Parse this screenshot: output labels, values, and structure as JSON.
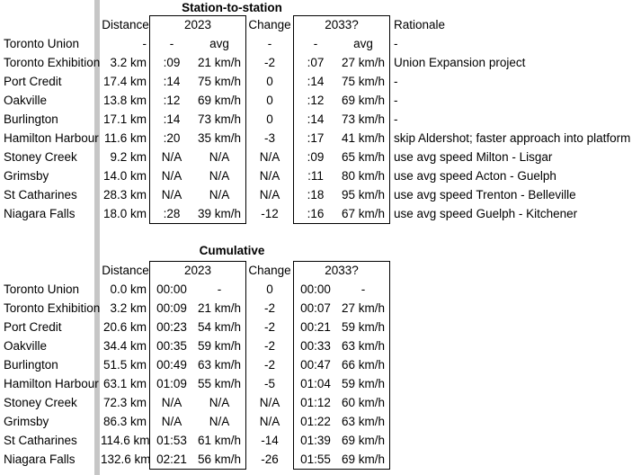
{
  "page": {
    "background_color": "#ffffff",
    "text_color": "#000000",
    "group_border_color": "#000000",
    "divider_color": "#c6c6c6"
  },
  "tables": [
    {
      "title": "Station-to-station",
      "headers": {
        "distance": "Distance",
        "y2023": "2023",
        "change": "Change",
        "y2033": "2033?",
        "rationale": "Rationale"
      },
      "has_rationale": true,
      "rows": [
        {
          "station": "Toronto Union",
          "distance": "-",
          "t2023": "-",
          "v2023": "avg",
          "change": "-",
          "t2033": "-",
          "v2033": "avg",
          "rationale": "-"
        },
        {
          "station": "Toronto Exhibition",
          "distance": "3.2 km",
          "t2023": ":09",
          "v2023": "21 km/h",
          "change": "-2",
          "t2033": ":07",
          "v2033": "27 km/h",
          "rationale": "Union Expansion project"
        },
        {
          "station": "Port Credit",
          "distance": "17.4 km",
          "t2023": ":14",
          "v2023": "75 km/h",
          "change": "0",
          "t2033": ":14",
          "v2033": "75 km/h",
          "rationale": "-"
        },
        {
          "station": "Oakville",
          "distance": "13.8 km",
          "t2023": ":12",
          "v2023": "69 km/h",
          "change": "0",
          "t2033": ":12",
          "v2033": "69 km/h",
          "rationale": "-"
        },
        {
          "station": "Burlington",
          "distance": "17.1 km",
          "t2023": ":14",
          "v2023": "73 km/h",
          "change": "0",
          "t2033": ":14",
          "v2033": "73 km/h",
          "rationale": "-"
        },
        {
          "station": "Hamilton Harbour",
          "distance": "11.6 km",
          "t2023": ":20",
          "v2023": "35 km/h",
          "change": "-3",
          "t2033": ":17",
          "v2033": "41 km/h",
          "rationale": "skip Aldershot; faster approach into platform"
        },
        {
          "station": "Stoney Creek",
          "distance": "9.2 km",
          "t2023": "N/A",
          "v2023": "N/A",
          "change": "N/A",
          "t2033": ":09",
          "v2033": "65 km/h",
          "rationale": "use avg speed Milton - Lisgar"
        },
        {
          "station": "Grimsby",
          "distance": "14.0 km",
          "t2023": "N/A",
          "v2023": "N/A",
          "change": "N/A",
          "t2033": ":11",
          "v2033": "80 km/h",
          "rationale": "use avg speed Acton - Guelph"
        },
        {
          "station": "St Catharines",
          "distance": "28.3 km",
          "t2023": "N/A",
          "v2023": "N/A",
          "change": "N/A",
          "t2033": ":18",
          "v2033": "95 km/h",
          "rationale": "use avg speed Trenton - Belleville"
        },
        {
          "station": "Niagara Falls",
          "distance": "18.0 km",
          "t2023": ":28",
          "v2023": "39 km/h",
          "change": "-12",
          "t2033": ":16",
          "v2033": "67 km/h",
          "rationale": "use avg speed Guelph - Kitchener"
        }
      ]
    },
    {
      "title": "Cumulative",
      "headers": {
        "distance": "Distance",
        "y2023": "2023",
        "change": "Change",
        "y2033": "2033?"
      },
      "has_rationale": false,
      "rows": [
        {
          "station": "Toronto Union",
          "distance": "0.0 km",
          "t2023": "00:00",
          "v2023": "-",
          "change": "0",
          "t2033": "00:00",
          "v2033": "-"
        },
        {
          "station": "Toronto Exhibition",
          "distance": "3.2 km",
          "t2023": "00:09",
          "v2023": "21 km/h",
          "change": "-2",
          "t2033": "00:07",
          "v2033": "27 km/h"
        },
        {
          "station": "Port Credit",
          "distance": "20.6 km",
          "t2023": "00:23",
          "v2023": "54 km/h",
          "change": "-2",
          "t2033": "00:21",
          "v2033": "59 km/h"
        },
        {
          "station": "Oakville",
          "distance": "34.4 km",
          "t2023": "00:35",
          "v2023": "59 km/h",
          "change": "-2",
          "t2033": "00:33",
          "v2033": "63 km/h"
        },
        {
          "station": "Burlington",
          "distance": "51.5 km",
          "t2023": "00:49",
          "v2023": "63 km/h",
          "change": "-2",
          "t2033": "00:47",
          "v2033": "66 km/h"
        },
        {
          "station": "Hamilton Harbour",
          "distance": "63.1 km",
          "t2023": "01:09",
          "v2023": "55 km/h",
          "change": "-5",
          "t2033": "01:04",
          "v2033": "59 km/h"
        },
        {
          "station": "Stoney Creek",
          "distance": "72.3 km",
          "t2023": "N/A",
          "v2023": "N/A",
          "change": "N/A",
          "t2033": "01:12",
          "v2033": "60 km/h"
        },
        {
          "station": "Grimsby",
          "distance": "86.3 km",
          "t2023": "N/A",
          "v2023": "N/A",
          "change": "N/A",
          "t2033": "01:22",
          "v2033": "63 km/h"
        },
        {
          "station": "St Catharines",
          "distance": "114.6 km",
          "t2023": "01:53",
          "v2023": "61 km/h",
          "change": "-14",
          "t2033": "01:39",
          "v2033": "69 km/h"
        },
        {
          "station": "Niagara Falls",
          "distance": "132.6 km",
          "t2023": "02:21",
          "v2023": "56 km/h",
          "change": "-26",
          "t2033": "01:55",
          "v2033": "69 km/h"
        }
      ]
    }
  ]
}
